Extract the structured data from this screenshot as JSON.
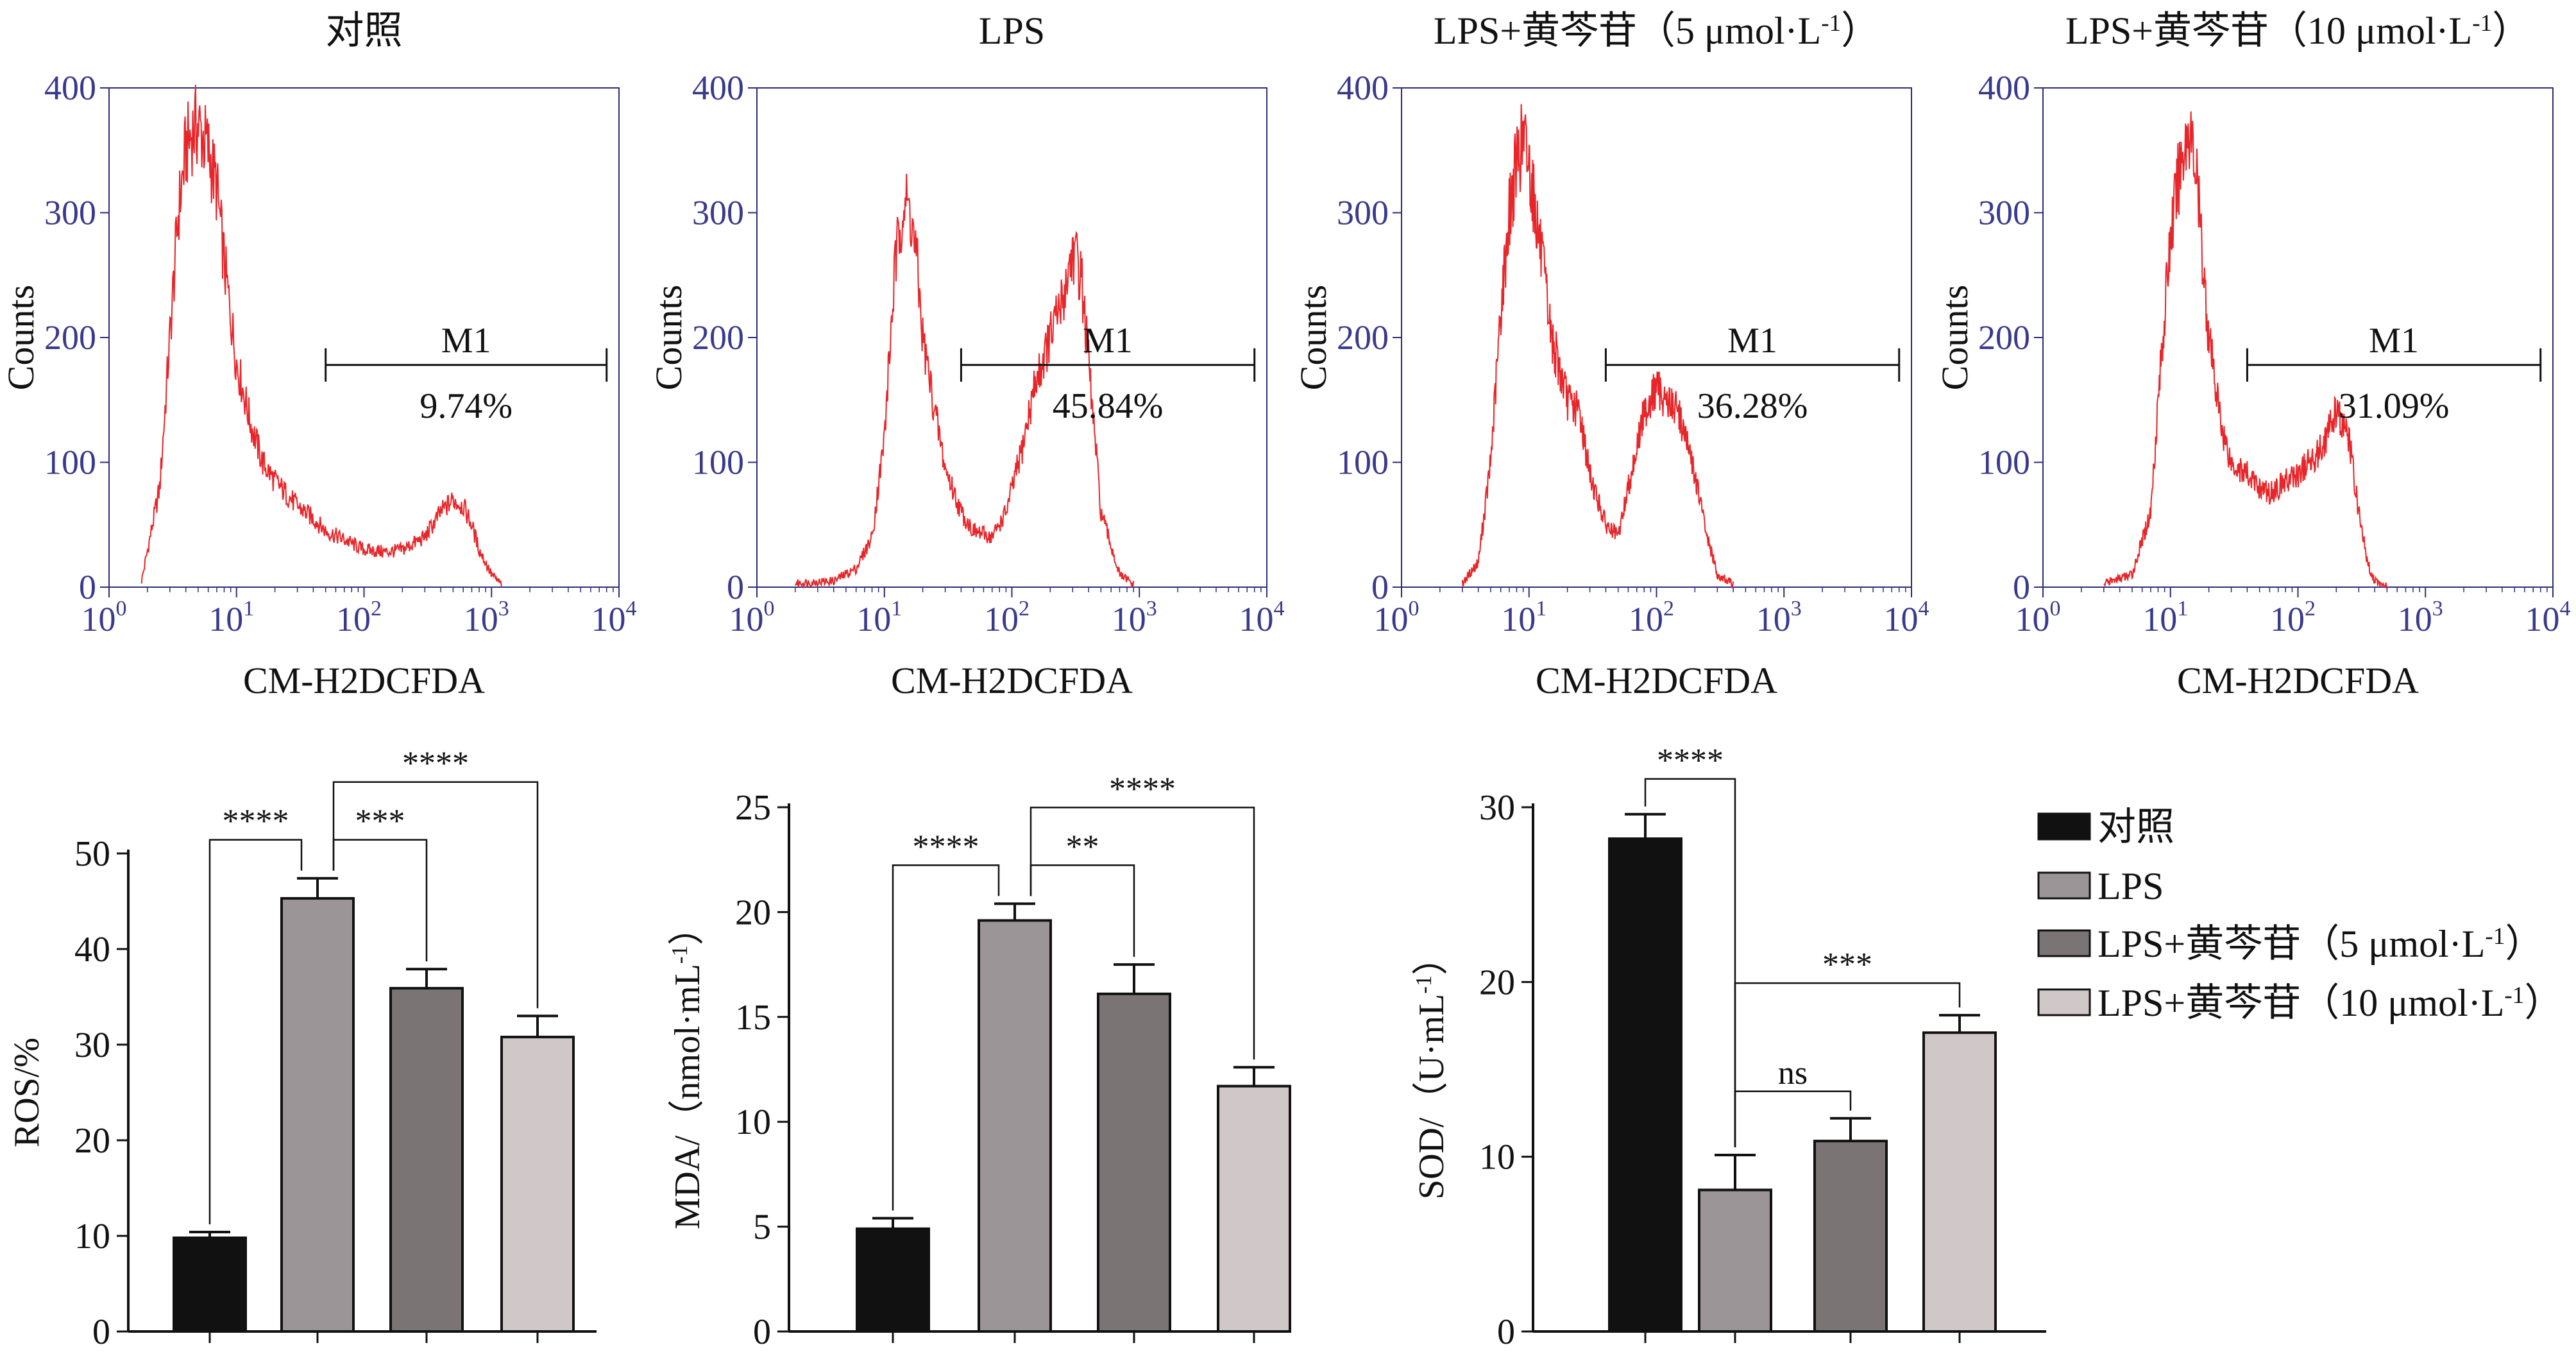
{
  "flow_panels": [
    {
      "title": "对照",
      "gate_label": "M1",
      "gate_pct": "9.74%",
      "xlabel": "CM-H2DCFDA",
      "ylabel": "Counts"
    },
    {
      "title": "LPS",
      "gate_label": "M1",
      "gate_pct": "45.84%",
      "xlabel": "CM-H2DCFDA",
      "ylabel": "Counts"
    },
    {
      "title": "LPS+黄芩苷（5 μmol·L-1）",
      "gate_label": "M1",
      "gate_pct": "36.28%",
      "xlabel": "CM-H2DCFDA",
      "ylabel": "Counts"
    },
    {
      "title": "LPS+黄芩苷（10 μmol·L-1）",
      "gate_label": "M1",
      "gate_pct": "31.09%",
      "xlabel": "CM-H2DCFDA",
      "ylabel": "Counts"
    }
  ],
  "flow_axis": {
    "y_ticks": [
      "0",
      "100",
      "200",
      "300",
      "400"
    ],
    "x_ticks": [
      {
        "base": "10",
        "exp": "0"
      },
      {
        "base": "10",
        "exp": "1"
      },
      {
        "base": "10",
        "exp": "2"
      },
      {
        "base": "10",
        "exp": "3"
      },
      {
        "base": "10",
        "exp": "4"
      }
    ]
  },
  "legend": {
    "items": [
      {
        "label": "对照",
        "color": "#111111"
      },
      {
        "label": "LPS",
        "color": "#9b9598"
      },
      {
        "label": "LPS+黄芩苷（5 μmol·L-1）",
        "color": "#7a7475"
      },
      {
        "label": "LPS+黄芩苷（10 μmol·L-1）",
        "color": "#cfc7c8"
      }
    ]
  },
  "chart_data": [
    {
      "type": "line",
      "panel": "对照",
      "xlabel": "CM-H2DCFDA",
      "ylabel": "Counts",
      "x_scale": "log",
      "xlim": [
        1,
        10000
      ],
      "ylim": [
        0,
        400
      ],
      "x": [
        1.8,
        2.5,
        3,
        3.5,
        4,
        4.5,
        5,
        6,
        7,
        8,
        10,
        13,
        16,
        20,
        30,
        40,
        50,
        70,
        100,
        150,
        200,
        300,
        400,
        500,
        600,
        700,
        800,
        1000,
        1200
      ],
      "y": [
        5,
        80,
        200,
        300,
        350,
        365,
        370,
        350,
        320,
        260,
        180,
        130,
        100,
        85,
        65,
        55,
        45,
        38,
        30,
        28,
        30,
        40,
        60,
        70,
        65,
        50,
        30,
        10,
        2
      ],
      "gate": {
        "label": "M1",
        "range": [
          50,
          8000
        ],
        "percent": "9.74%"
      }
    },
    {
      "type": "line",
      "panel": "LPS",
      "xlabel": "CM-H2DCFDA",
      "ylabel": "Counts",
      "x_scale": "log",
      "xlim": [
        1,
        10000
      ],
      "ylim": [
        0,
        400
      ],
      "x": [
        2,
        4,
        6,
        8,
        10,
        12,
        14,
        16,
        18,
        20,
        24,
        30,
        40,
        50,
        70,
        90,
        120,
        150,
        200,
        250,
        300,
        350,
        400,
        500,
        700,
        900
      ],
      "y": [
        3,
        5,
        15,
        40,
        120,
        250,
        310,
        300,
        260,
        200,
        150,
        95,
        60,
        45,
        40,
        60,
        110,
        160,
        200,
        230,
        270,
        250,
        180,
        60,
        10,
        2
      ],
      "gate": {
        "label": "M1",
        "range": [
          40,
          8000
        ],
        "percent": "45.84%"
      }
    },
    {
      "type": "line",
      "panel": "LPS+黄芩苷（5 μmol·L-1）",
      "xlabel": "CM-H2DCFDA",
      "ylabel": "Counts",
      "x_scale": "log",
      "xlim": [
        1,
        10000
      ],
      "ylim": [
        0,
        400
      ],
      "x": [
        3,
        4,
        5,
        6,
        7,
        8,
        9,
        10,
        12,
        15,
        20,
        25,
        30,
        40,
        50,
        60,
        80,
        100,
        120,
        150,
        200,
        250,
        300,
        400
      ],
      "y": [
        3,
        20,
        100,
        220,
        300,
        340,
        360,
        340,
        280,
        200,
        150,
        140,
        90,
        50,
        40,
        80,
        140,
        160,
        150,
        140,
        90,
        40,
        10,
        2
      ],
      "gate": {
        "label": "M1",
        "range": [
          40,
          8000
        ],
        "percent": "36.28%"
      }
    },
    {
      "type": "line",
      "panel": "LPS+黄芩苷（10 μmol·L-1）",
      "xlabel": "CM-H2DCFDA",
      "ylabel": "Counts",
      "x_scale": "log",
      "xlim": [
        1,
        10000
      ],
      "ylim": [
        0,
        400
      ],
      "x": [
        3,
        5,
        7,
        8,
        10,
        12,
        14,
        16,
        18,
        20,
        25,
        30,
        40,
        50,
        60,
        80,
        100,
        150,
        200,
        250,
        300,
        350,
        400,
        500
      ],
      "y": [
        3,
        10,
        60,
        150,
        280,
        340,
        370,
        330,
        260,
        200,
        130,
        100,
        90,
        80,
        75,
        85,
        90,
        110,
        140,
        120,
        60,
        20,
        5,
        1
      ],
      "gate": {
        "label": "M1",
        "range": [
          40,
          8000
        ],
        "percent": "31.09%"
      }
    },
    {
      "type": "bar",
      "panel": "ROS",
      "ylabel": "ROS/%",
      "ylim": [
        0,
        50
      ],
      "yticks": [
        0,
        10,
        20,
        30,
        40,
        50
      ],
      "categories": [
        "对照",
        "LPS",
        "LPS+黄芩苷（5 μmol·L-1）",
        "LPS+黄芩苷（10 μmol·L-1）"
      ],
      "values": [
        9.8,
        45.3,
        35.9,
        30.8
      ],
      "errors": [
        0.6,
        2.1,
        2.0,
        2.2
      ],
      "significance": [
        {
          "from": 0,
          "to": 1,
          "label": "****"
        },
        {
          "from": 1,
          "to": 2,
          "label": "***"
        },
        {
          "from": 1,
          "to": 3,
          "label": "****"
        }
      ]
    },
    {
      "type": "bar",
      "panel": "MDA",
      "ylabel": "MDA/（nmol·mL-1）",
      "ylim": [
        0,
        25
      ],
      "yticks": [
        0,
        5,
        10,
        15,
        20,
        25
      ],
      "categories": [
        "对照",
        "LPS",
        "LPS+黄芩苷（5 μmol·L-1）",
        "LPS+黄芩苷（10 μmol·L-1）"
      ],
      "values": [
        4.9,
        19.6,
        16.1,
        11.7
      ],
      "errors": [
        0.5,
        0.8,
        1.4,
        0.9
      ],
      "significance": [
        {
          "from": 0,
          "to": 1,
          "label": "****"
        },
        {
          "from": 1,
          "to": 2,
          "label": "**"
        },
        {
          "from": 1,
          "to": 3,
          "label": "****"
        }
      ]
    },
    {
      "type": "bar",
      "panel": "SOD",
      "ylabel": "SOD/（U·mL-1）",
      "ylim": [
        0,
        30
      ],
      "yticks": [
        0,
        10,
        20,
        30
      ],
      "categories": [
        "对照",
        "LPS",
        "LPS+黄芩苷（5 μmol·L-1）",
        "LPS+黄芩苷（10 μmol·L-1）"
      ],
      "values": [
        28.2,
        8.1,
        10.9,
        17.1
      ],
      "errors": [
        1.4,
        2.0,
        1.3,
        1.0
      ],
      "significance": [
        {
          "from": 0,
          "to": 1,
          "label": "****"
        },
        {
          "from": 1,
          "to": 2,
          "label": "ns"
        },
        {
          "from": 1,
          "to": 3,
          "label": "***"
        }
      ]
    }
  ]
}
